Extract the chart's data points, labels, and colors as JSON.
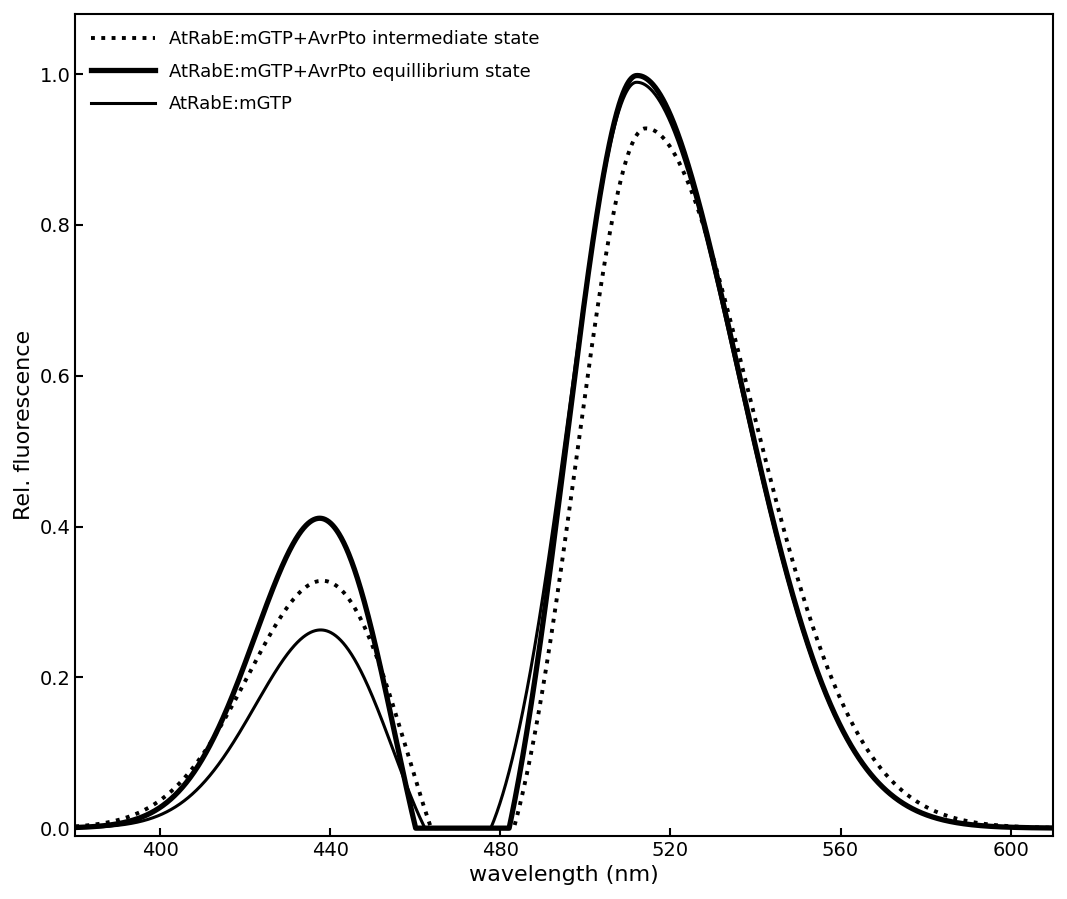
{
  "title": "",
  "xlabel": "wavelength (nm)",
  "ylabel": "Rel. fluorescence",
  "xlim": [
    380,
    610
  ],
  "ylim": [
    -0.01,
    1.08
  ],
  "xticks": [
    400,
    440,
    480,
    520,
    560,
    600
  ],
  "yticks": [
    0.0,
    0.2,
    0.4,
    0.6,
    0.8,
    1.0
  ],
  "legend": [
    {
      "label": "AtRabE:mGTP+AvrPto intermediate state",
      "style": "dotted",
      "lw": 2.5
    },
    {
      "label": "AtRabE:mGTP+AvrPto equillibrium state",
      "style": "solid",
      "lw": 3.5
    },
    {
      "label": "AtRabE:mGTP",
      "style": "solid",
      "lw": 2.5
    }
  ],
  "background_color": "#ffffff",
  "line_color": "#000000",
  "font_size_label": 16,
  "font_size_tick": 14,
  "font_size_legend": 13
}
